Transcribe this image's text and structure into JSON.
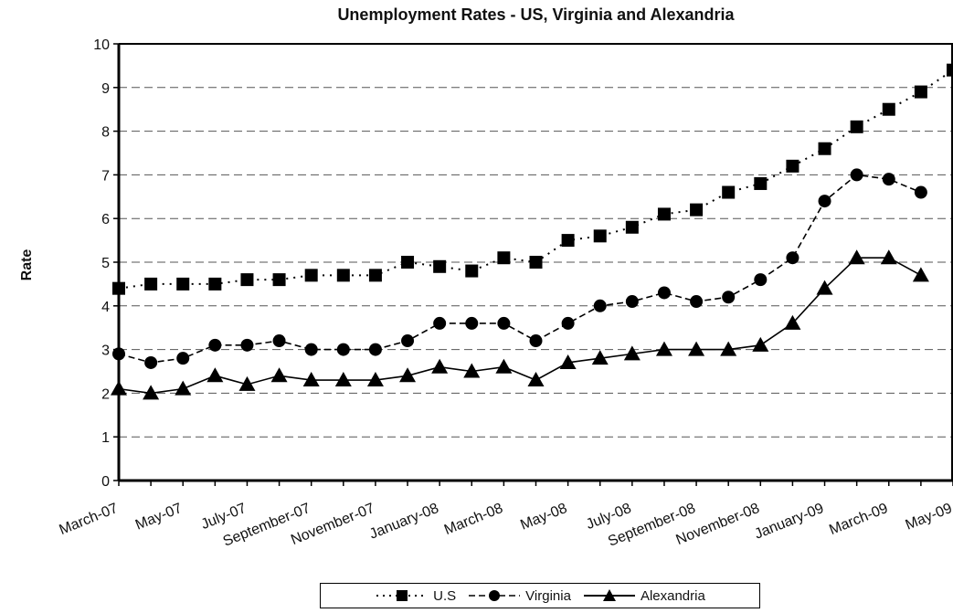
{
  "chart_data": {
    "type": "line",
    "title": "Unemployment Rates - US, Virginia and Alexandria",
    "xlabel": "",
    "ylabel": "Rate",
    "ylim": [
      0,
      10
    ],
    "yticks": [
      0,
      1,
      2,
      3,
      4,
      5,
      6,
      7,
      8,
      9,
      10
    ],
    "grid": true,
    "legend_position": "bottom",
    "x_tick_labels": [
      "March-07",
      "May-07",
      "July-07",
      "September-07",
      "November-07",
      "January-08",
      "March-08",
      "May-08",
      "July-08",
      "September-08",
      "November-08",
      "January-09",
      "March-09",
      "May-09"
    ],
    "x": [
      "March-07",
      "April-07",
      "May-07",
      "June-07",
      "July-07",
      "August-07",
      "September-07",
      "October-07",
      "November-07",
      "December-07",
      "January-08",
      "February-08",
      "March-08",
      "April-08",
      "May-08",
      "June-08",
      "July-08",
      "August-08",
      "September-08",
      "October-08",
      "November-08",
      "December-08",
      "January-09",
      "February-09",
      "March-09",
      "April-09",
      "May-09"
    ],
    "series": [
      {
        "name": "U.S",
        "style": "dotted",
        "marker": "square",
        "color": "#000000",
        "values": [
          4.4,
          4.5,
          4.5,
          4.5,
          4.6,
          4.6,
          4.7,
          4.7,
          4.7,
          5.0,
          4.9,
          4.8,
          5.1,
          5.0,
          5.5,
          5.6,
          5.8,
          6.1,
          6.2,
          6.6,
          6.8,
          7.2,
          7.6,
          8.1,
          8.5,
          8.9,
          9.4
        ]
      },
      {
        "name": "Virginia",
        "style": "dashed",
        "marker": "circle",
        "color": "#000000",
        "values": [
          2.9,
          2.7,
          2.8,
          3.1,
          3.1,
          3.2,
          3.0,
          3.0,
          3.0,
          3.2,
          3.6,
          3.6,
          3.6,
          3.2,
          3.6,
          4.0,
          4.1,
          4.3,
          4.1,
          4.2,
          4.6,
          5.1,
          6.4,
          7.0,
          6.9,
          6.6,
          null
        ]
      },
      {
        "name": "Alexandria",
        "style": "solid",
        "marker": "triangle",
        "color": "#000000",
        "values": [
          2.1,
          2.0,
          2.1,
          2.4,
          2.2,
          2.4,
          2.3,
          2.3,
          2.3,
          2.4,
          2.6,
          2.5,
          2.6,
          2.3,
          2.7,
          2.8,
          2.9,
          3.0,
          3.0,
          3.0,
          3.1,
          3.6,
          4.4,
          5.1,
          5.1,
          4.7,
          null
        ]
      }
    ]
  }
}
